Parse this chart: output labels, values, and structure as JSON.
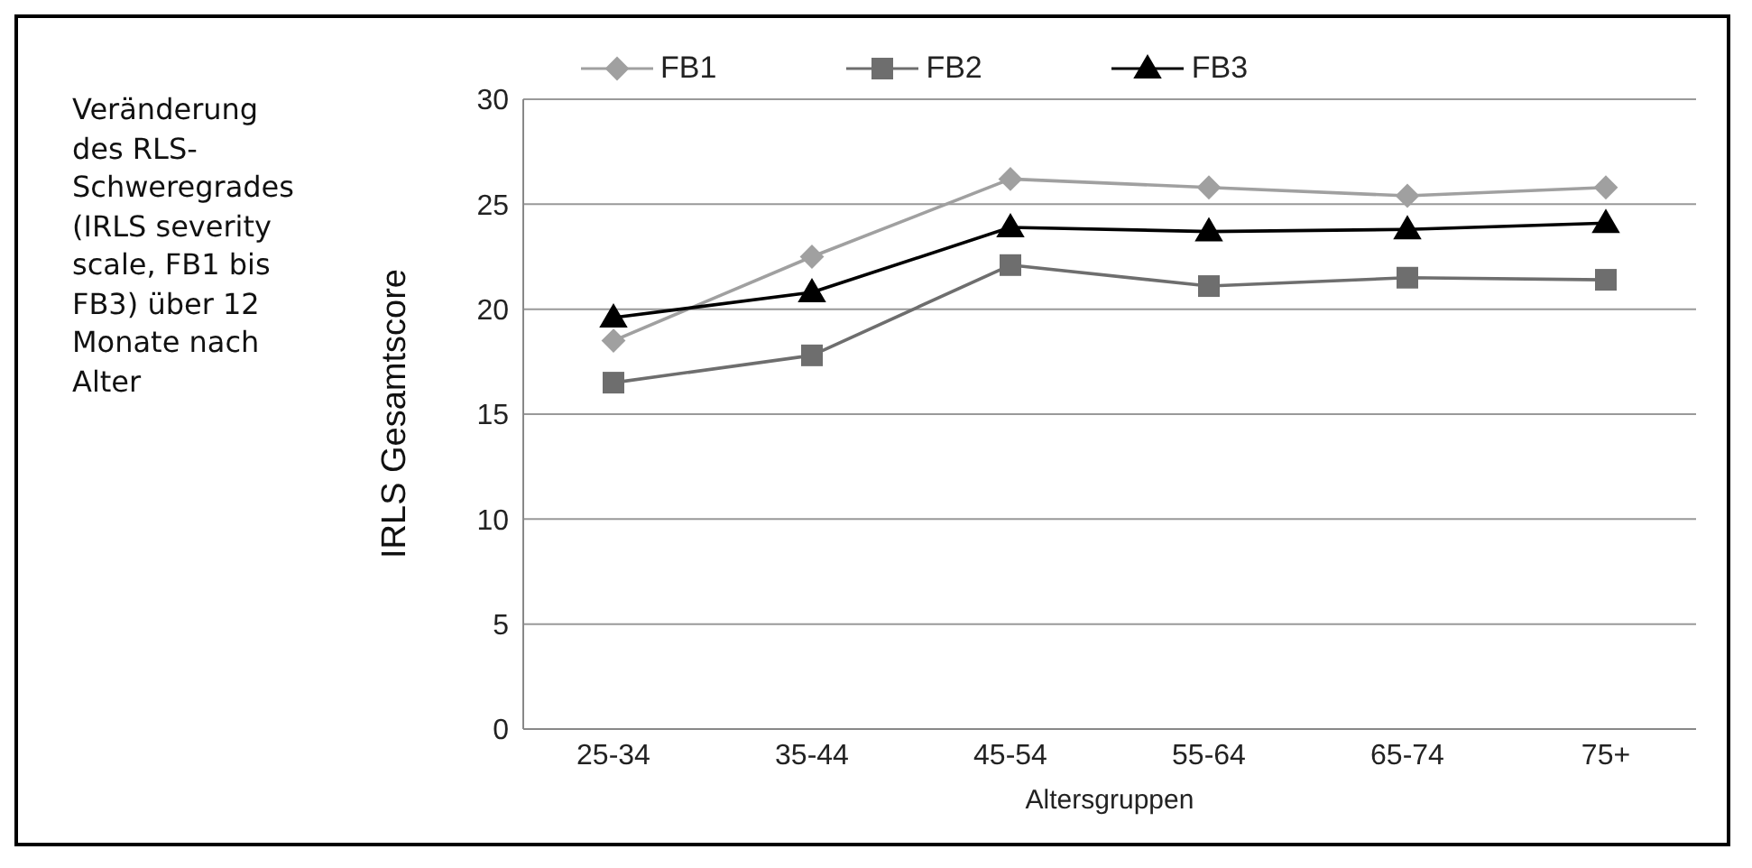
{
  "chart_data": {
    "type": "line",
    "title": "Veränderung des RLS-Schweregrades (IRLS severity scale, FB1 bis FB3) über 12 Monate nach Alter",
    "xlabel": "Altersgruppen",
    "ylabel": "IRLS Gesamtscore",
    "categories": [
      "25-34",
      "35-44",
      "45-54",
      "55-64",
      "65-74",
      "75+"
    ],
    "series": [
      {
        "name": "FB1",
        "color": "#a0a0a0",
        "marker": "diamond",
        "values": [
          18.5,
          22.5,
          26.2,
          25.8,
          25.4,
          25.8
        ]
      },
      {
        "name": "FB2",
        "color": "#6e6e6e",
        "marker": "square",
        "values": [
          16.5,
          17.8,
          22.1,
          21.1,
          21.5,
          21.4
        ]
      },
      {
        "name": "FB3",
        "color": "#000000",
        "marker": "triangle",
        "values": [
          19.6,
          20.8,
          23.9,
          23.7,
          23.8,
          24.1
        ]
      }
    ],
    "ylim": [
      0,
      30
    ],
    "yticks": [
      0,
      5,
      10,
      15,
      20,
      25,
      30
    ],
    "grid": "y",
    "legend": "top"
  }
}
